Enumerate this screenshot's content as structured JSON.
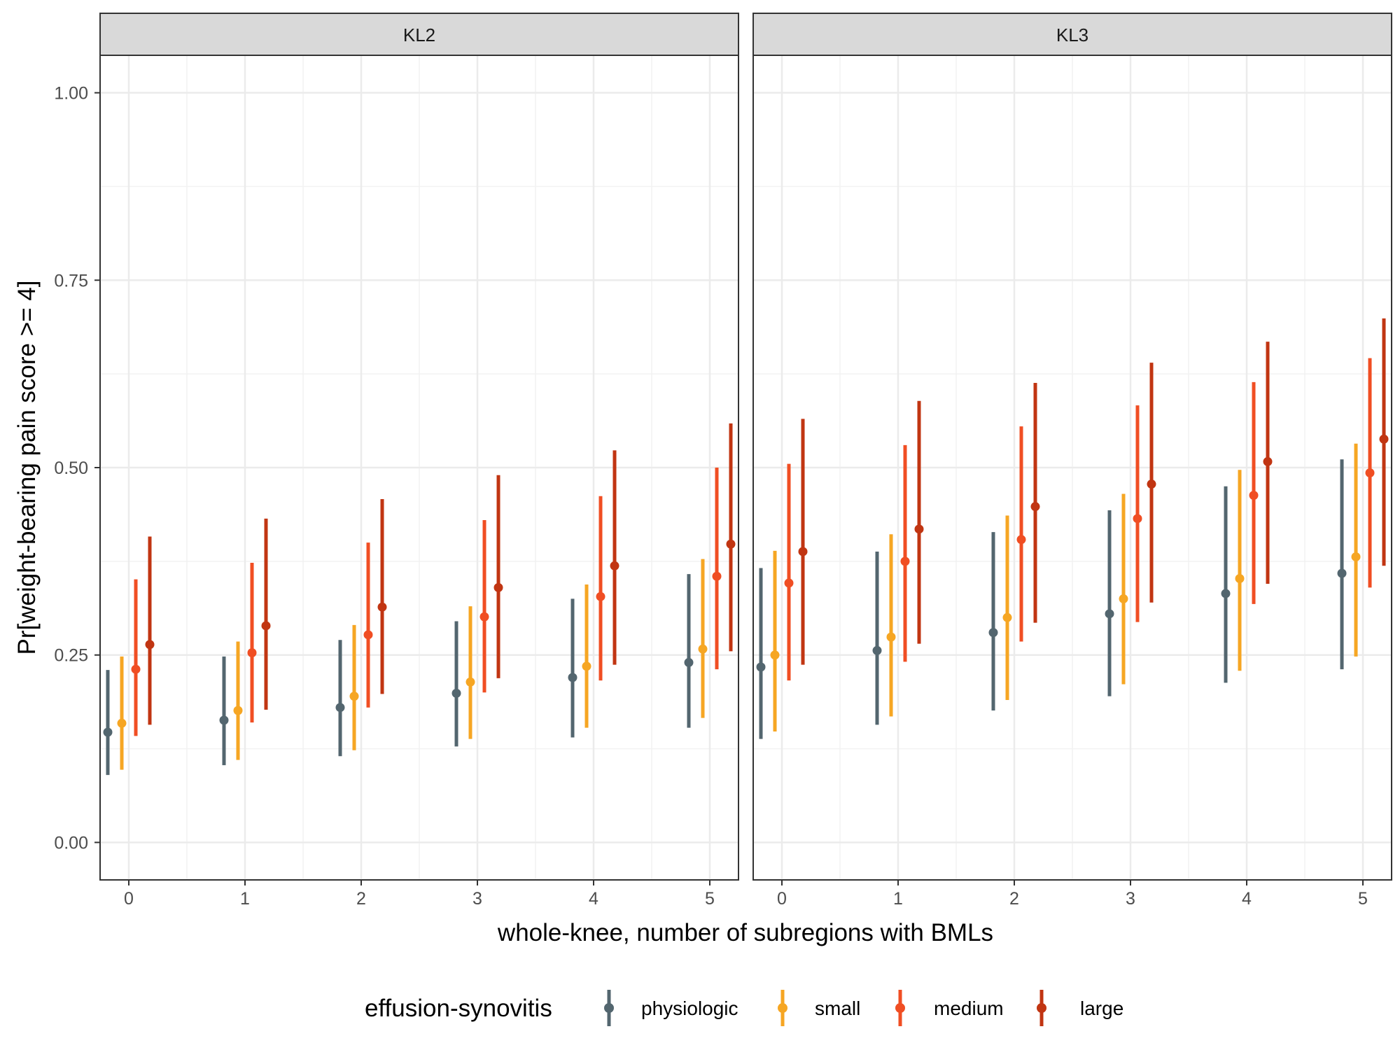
{
  "chart_data": {
    "type": "pointrange",
    "y_label": "Pr[weight-bearing pain score >= 4]",
    "x_label": "whole-knee, number of subregions with BMLs",
    "ylim": [
      -0.05,
      1.05
    ],
    "y_ticks": [
      "0.00",
      "0.25",
      "0.50",
      "0.75",
      "1.00"
    ],
    "y_tick_values": [
      0,
      0.25,
      0.5,
      0.75,
      1.0
    ],
    "x_ticks": [
      "0",
      "1",
      "2",
      "3",
      "4",
      "5"
    ],
    "legend": {
      "title": "effusion-synovitis",
      "position": "bottom",
      "items": [
        {
          "key": "physiologic",
          "label": "physiologic",
          "color": "#53666f"
        },
        {
          "key": "small",
          "label": "small",
          "color": "#f6a623"
        },
        {
          "key": "medium",
          "label": "medium",
          "color": "#f04e23"
        },
        {
          "key": "large",
          "label": "large",
          "color": "#c13512"
        }
      ]
    },
    "panels": [
      {
        "label": "KL2",
        "series": [
          {
            "name": "physiologic",
            "x": [
              0,
              1,
              2,
              3,
              4,
              5
            ],
            "estimate": [
              0.147,
              0.163,
              0.18,
              0.199,
              0.22,
              0.24
            ],
            "lower": [
              0.09,
              0.103,
              0.115,
              0.128,
              0.14,
              0.153
            ],
            "upper": [
              0.23,
              0.248,
              0.27,
              0.295,
              0.325,
              0.358
            ]
          },
          {
            "name": "small",
            "x": [
              0,
              1,
              2,
              3,
              4,
              5
            ],
            "estimate": [
              0.159,
              0.176,
              0.195,
              0.214,
              0.235,
              0.258
            ],
            "lower": [
              0.097,
              0.11,
              0.123,
              0.138,
              0.153,
              0.166
            ],
            "upper": [
              0.248,
              0.268,
              0.29,
              0.315,
              0.344,
              0.378
            ]
          },
          {
            "name": "medium",
            "x": [
              0,
              1,
              2,
              3,
              4,
              5
            ],
            "estimate": [
              0.231,
              0.253,
              0.277,
              0.301,
              0.328,
              0.355
            ],
            "lower": [
              0.142,
              0.16,
              0.18,
              0.2,
              0.216,
              0.231
            ],
            "upper": [
              0.351,
              0.373,
              0.4,
              0.43,
              0.462,
              0.5
            ]
          },
          {
            "name": "large",
            "x": [
              0,
              1,
              2,
              3,
              4,
              5
            ],
            "estimate": [
              0.264,
              0.289,
              0.314,
              0.34,
              0.369,
              0.398
            ],
            "lower": [
              0.157,
              0.177,
              0.198,
              0.219,
              0.237,
              0.255
            ],
            "upper": [
              0.408,
              0.432,
              0.458,
              0.49,
              0.523,
              0.559
            ]
          }
        ]
      },
      {
        "label": "KL3",
        "series": [
          {
            "name": "physiologic",
            "x": [
              0,
              1,
              2,
              3,
              4,
              5
            ],
            "estimate": [
              0.234,
              0.256,
              0.28,
              0.305,
              0.332,
              0.359
            ],
            "lower": [
              0.138,
              0.157,
              0.176,
              0.195,
              0.213,
              0.231
            ],
            "upper": [
              0.366,
              0.388,
              0.414,
              0.443,
              0.475,
              0.511
            ]
          },
          {
            "name": "small",
            "x": [
              0,
              1,
              2,
              3,
              4,
              5
            ],
            "estimate": [
              0.25,
              0.274,
              0.3,
              0.325,
              0.352,
              0.381
            ],
            "lower": [
              0.148,
              0.168,
              0.19,
              0.211,
              0.229,
              0.248
            ],
            "upper": [
              0.389,
              0.411,
              0.436,
              0.465,
              0.497,
              0.532
            ]
          },
          {
            "name": "medium",
            "x": [
              0,
              1,
              2,
              3,
              4,
              5
            ],
            "estimate": [
              0.346,
              0.375,
              0.404,
              0.432,
              0.463,
              0.493
            ],
            "lower": [
              0.216,
              0.241,
              0.268,
              0.294,
              0.318,
              0.34
            ],
            "upper": [
              0.505,
              0.53,
              0.555,
              0.583,
              0.614,
              0.646
            ]
          },
          {
            "name": "large",
            "x": [
              0,
              1,
              2,
              3,
              4,
              5
            ],
            "estimate": [
              0.388,
              0.418,
              0.448,
              0.478,
              0.508,
              0.538
            ],
            "lower": [
              0.237,
              0.265,
              0.293,
              0.32,
              0.345,
              0.369
            ],
            "upper": [
              0.565,
              0.589,
              0.613,
              0.64,
              0.668,
              0.699
            ]
          }
        ]
      }
    ]
  }
}
